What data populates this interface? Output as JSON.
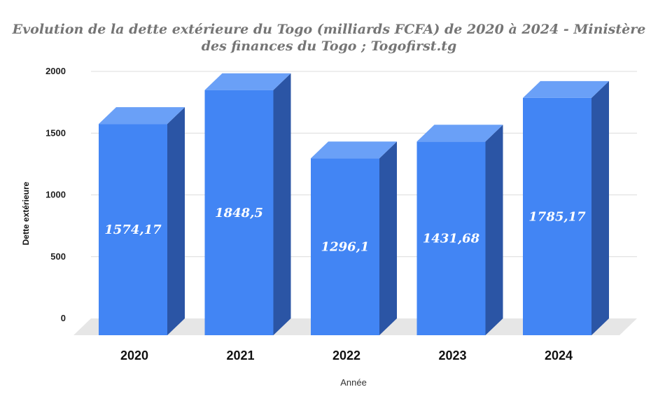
{
  "chart_data": {
    "type": "bar",
    "title_line1": "Evolution de la dette extérieure du Togo (milliards FCFA) de 2020 à 2024 - Ministère",
    "title_line2": "des finances du Togo ; Togofirst.tg",
    "xlabel": "Année",
    "ylabel": "Dette extérieure",
    "categories": [
      "2020",
      "2021",
      "2022",
      "2023",
      "2024"
    ],
    "values": [
      1574.17,
      1848.5,
      1296.1,
      1431.68,
      1785.17
    ],
    "data_labels": [
      "1574,17",
      "1848,5",
      "1296,1",
      "1431,68",
      "1785,17"
    ],
    "yticks": [
      0,
      500,
      1000,
      1500,
      2000
    ],
    "ylim": [
      0,
      2000
    ],
    "grid": true,
    "legend": "none",
    "style": "3d-column",
    "colors": {
      "front": "#4285f4",
      "top": "#6aa0f7",
      "side": "#2b55a5",
      "floor": "#e6e6e6",
      "grid": "#dcdcdc"
    }
  }
}
